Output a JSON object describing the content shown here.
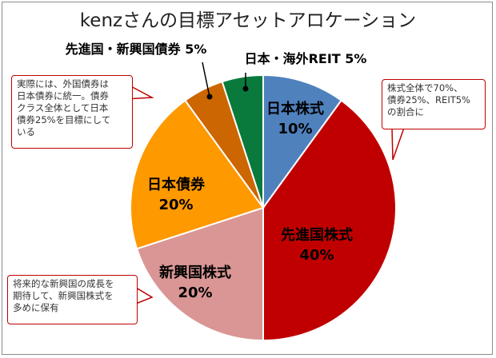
{
  "title": "kenzさんの目標アセットアロケーション",
  "colors": {
    "nihon_kabushiki": "#4f81bd",
    "senshinkoku_kabushiki": "#c00000",
    "shinkoukoku_kabushiki": "#d99694",
    "nihon_saiken": "#ff9900",
    "senshinkoku_shinkoukoku_saiken": "#cc6600",
    "nihon_kaigai_reit": "#0a7a3c",
    "callout_border": "#c00000"
  },
  "chart_data": {
    "type": "pie",
    "start_angle_deg": 0,
    "direction": "clockwise",
    "slices": [
      {
        "id": "nihon_kabushiki",
        "label": "日本株式",
        "value": 10,
        "value_label": "10%",
        "color": "#4f81bd"
      },
      {
        "id": "senshinkoku_kabushiki",
        "label": "先進国株式",
        "value": 40,
        "value_label": "40%",
        "color": "#c00000"
      },
      {
        "id": "shinkoukoku_kabushiki",
        "label": "新興国株式",
        "value": 20,
        "value_label": "20%",
        "color": "#d99694"
      },
      {
        "id": "nihon_saiken",
        "label": "日本債券",
        "value": 20,
        "value_label": "20%",
        "color": "#ff9900"
      },
      {
        "id": "senshinkoku_shinkoukoku_saiken",
        "label": "先進国・新興国債券 5%",
        "value": 5,
        "color": "#cc6600"
      },
      {
        "id": "nihon_kaigai_reit",
        "label": "日本・海外REIT 5%",
        "value": 5,
        "color": "#0a7a3c"
      }
    ]
  },
  "callouts": {
    "top_right": {
      "lines": [
        "株式全体で70%、",
        "債券25%、REIT5%",
        "の割合に"
      ]
    },
    "top_left": {
      "lines": [
        "実際には、外国債券は",
        "日本債券に統一。債券",
        "クラス全体として日本",
        "債券25%を目標にして",
        "いる"
      ]
    },
    "bottom_left": {
      "lines": [
        "将来的な新興国の成長を",
        "期待して、新興国株式を",
        "多めに保有"
      ]
    }
  }
}
